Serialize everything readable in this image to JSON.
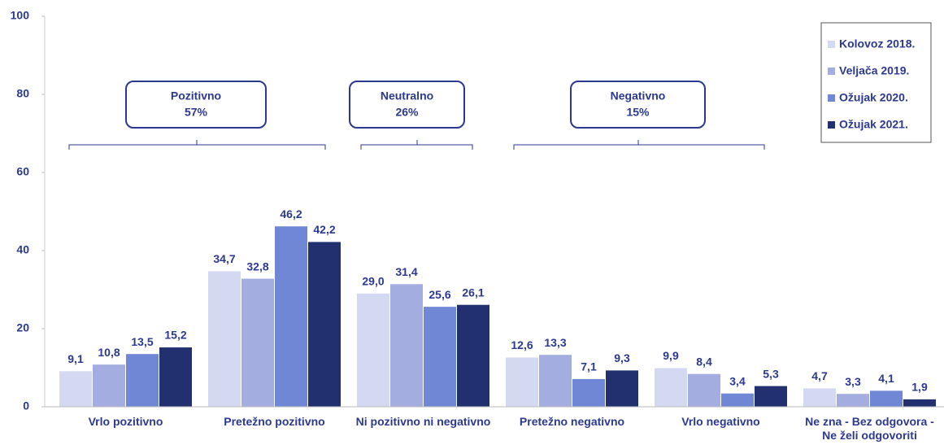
{
  "chart_data": {
    "type": "bar",
    "categories": [
      "Vrlo pozitivno",
      "Pretežno pozitivno",
      "Ni pozitivno ni negativno",
      "Pretežno negativno",
      "Vrlo negativno",
      "Ne zna - Bez odgovora - Ne želi odgovoriti"
    ],
    "series": [
      {
        "name": "Kolovoz 2018.",
        "color": "#d3d9f0",
        "values": [
          9.1,
          34.7,
          29.0,
          12.6,
          9.9,
          4.7
        ],
        "value_labels": [
          "9,1",
          "34,7",
          "29,0",
          "12,6",
          "9,9",
          "4,7"
        ]
      },
      {
        "name": "Veljača 2019.",
        "color": "#a3addf",
        "values": [
          10.8,
          32.8,
          31.4,
          13.3,
          8.4,
          3.3
        ],
        "value_labels": [
          "10,8",
          "32,8",
          "31,4",
          "13,3",
          "8,4",
          "3,3"
        ]
      },
      {
        "name": "Ožujak 2020.",
        "color": "#7087d6",
        "values": [
          13.5,
          46.2,
          25.6,
          7.1,
          3.4,
          4.1
        ],
        "value_labels": [
          "13,5",
          "46,2",
          "25,6",
          "7,1",
          "3,4",
          "4,1"
        ]
      },
      {
        "name": "Ožujak 2021.",
        "color": "#22306f",
        "values": [
          15.2,
          42.2,
          26.1,
          9.3,
          5.3,
          1.9
        ],
        "value_labels": [
          "15,2",
          "42,2",
          "26,1",
          "9,3",
          "5,3",
          "1,9"
        ]
      }
    ],
    "ylim": [
      0,
      100
    ],
    "yticks": [
      0,
      20,
      40,
      60,
      80,
      100
    ],
    "annotations": [
      {
        "label": "Pozitivno",
        "value_label": "57%"
      },
      {
        "label": "Neutralno",
        "value_label": "26%"
      },
      {
        "label": "Negativno",
        "value_label": "15%"
      }
    ],
    "legend": "top-right"
  }
}
